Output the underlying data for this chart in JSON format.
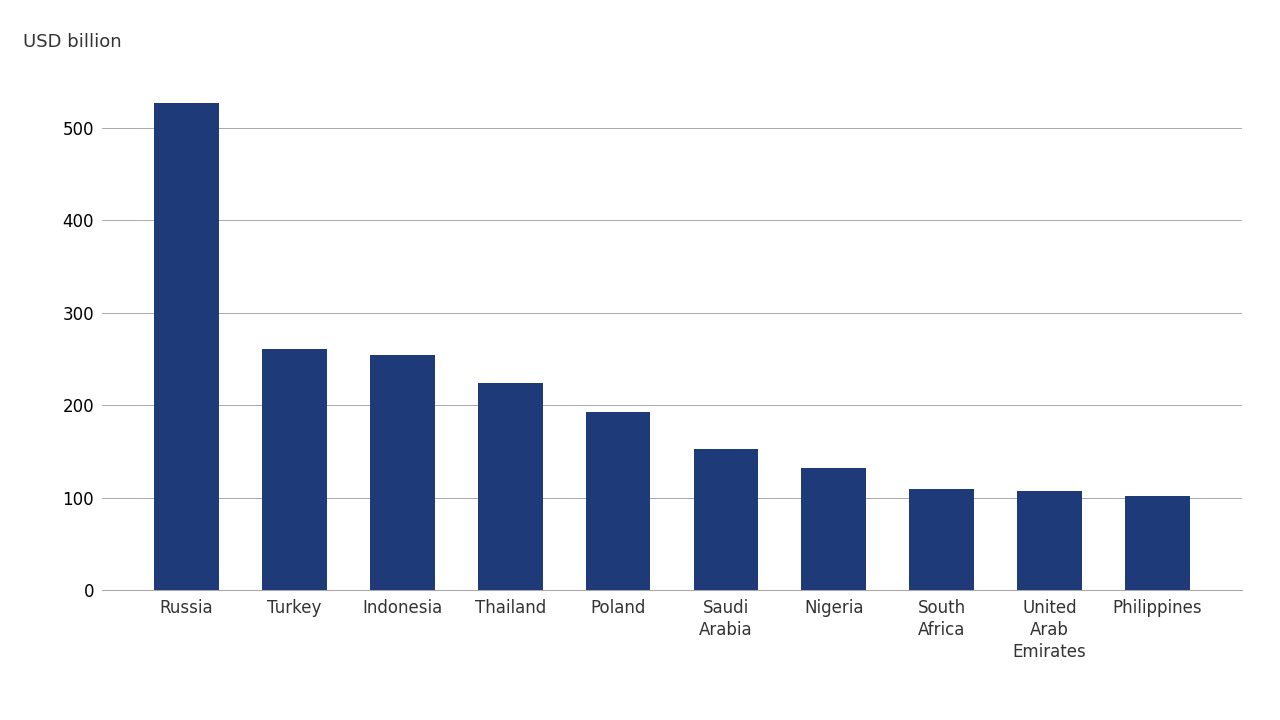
{
  "categories": [
    "Russia",
    "Turkey",
    "Indonesia",
    "Thailand",
    "Poland",
    "Saudi\nArabia",
    "Nigeria",
    "South\nAfrica",
    "United\nArab\nEmirates",
    "Philippines"
  ],
  "values": [
    527,
    261,
    254,
    224,
    193,
    153,
    132,
    110,
    107,
    102
  ],
  "bar_color": "#1e3a78",
  "ylabel": "USD billion",
  "ylim": [
    0,
    560
  ],
  "yticks": [
    0,
    100,
    200,
    300,
    400,
    500
  ],
  "background_color": "#ffffff",
  "grid_color": "#aaaaaa",
  "ylabel_fontsize": 13,
  "tick_fontsize": 12,
  "bar_width": 0.6
}
